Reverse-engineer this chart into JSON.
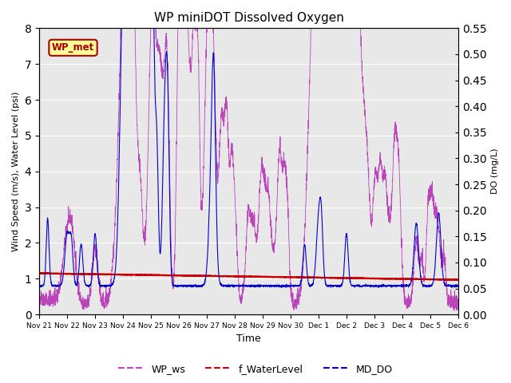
{
  "title": "WP miniDOT Dissolved Oxygen",
  "xlabel": "Time",
  "ylabel_left": "Wind Speed (m/s), Water Level (psi)",
  "ylabel_right": "DO (mg/L)",
  "ylim_left": [
    0.0,
    8.0
  ],
  "ylim_right": [
    0.0,
    0.55
  ],
  "yticks_left": [
    0.0,
    1.0,
    2.0,
    3.0,
    4.0,
    5.0,
    6.0,
    7.0,
    8.0
  ],
  "yticks_right": [
    0.0,
    0.05,
    0.1,
    0.15,
    0.2,
    0.25,
    0.3,
    0.35,
    0.4,
    0.45,
    0.5,
    0.55
  ],
  "color_ws": "#BB44BB",
  "color_wl": "#CC0000",
  "color_do": "#0000CC",
  "bg_color": "#E8E8E8",
  "box_label": "WP_met",
  "box_facecolor": "#FFFF99",
  "box_edgecolor": "#AA0000",
  "box_textcolor": "#AA0000",
  "legend_labels": [
    "WP_ws",
    "f_WaterLevel",
    "MD_DO"
  ],
  "n_points": 3000,
  "title_fontsize": 11,
  "xtick_labels": [
    "Nov 21",
    "Nov 22",
    "Nov 23",
    "Nov 24",
    "Nov 25",
    "Nov 26",
    "Nov 27",
    "Nov 28",
    "Nov 29",
    "Nov 30",
    "Dec 1",
    "Dec 2",
    "Dec 3",
    "Dec 4",
    "Dec 5",
    "Dec 6"
  ]
}
